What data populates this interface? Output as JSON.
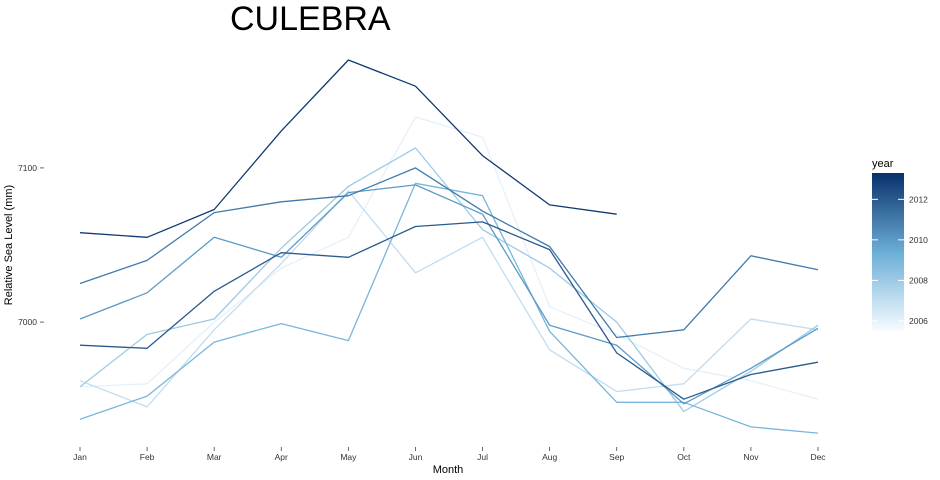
{
  "chart_data": {
    "type": "line",
    "title": "CULEBRA",
    "xlabel": "Month",
    "ylabel": "Relative Sea Level (mm)",
    "categories": [
      "Jan",
      "Feb",
      "Mar",
      "Apr",
      "May",
      "Jun",
      "Jul",
      "Aug",
      "Sep",
      "Oct",
      "Nov",
      "Dec"
    ],
    "ylim": [
      6920,
      7170
    ],
    "yticks": [
      7000,
      7100
    ],
    "grid": false,
    "legend": {
      "title": "year",
      "position": "right",
      "min": 2005.5,
      "max": 2013.3,
      "ticks": [
        2006,
        2008,
        2010,
        2012
      ],
      "low_color": "#f7fbff",
      "high_color": "#08306b"
    },
    "series": [
      {
        "year": 2006,
        "values": [
          6958,
          6960,
          7000,
          7035,
          7055,
          7133,
          7120,
          7010,
          6992,
          6970,
          6962,
          6950
        ]
      },
      {
        "year": 2007,
        "values": [
          6962,
          6945,
          6995,
          7038,
          7085,
          7032,
          7055,
          6982,
          6955,
          6960,
          7002,
          6995
        ]
      },
      {
        "year": 2008,
        "values": [
          6958,
          6992,
          7002,
          7048,
          7088,
          7113,
          7060,
          7035,
          7000,
          6942,
          6968,
          6998
        ]
      },
      {
        "year": 2009,
        "values": [
          6937,
          6952,
          6987,
          6999,
          6988,
          7090,
          7082,
          6994,
          6948,
          6948,
          6932,
          6928
        ]
      },
      {
        "year": 2010,
        "values": [
          7002,
          7019,
          7055,
          7042,
          7084,
          7089,
          7070,
          6998,
          6985,
          6947,
          6970,
          6996
        ]
      },
      {
        "year": 2011,
        "values": [
          7025,
          7040,
          7071,
          7078,
          7082,
          7100,
          7072,
          7049,
          6990,
          6995,
          7043,
          7034
        ]
      },
      {
        "year": 2012,
        "values": [
          6985,
          6983,
          7020,
          7045,
          7042,
          7062,
          7065,
          7047,
          6980,
          6950,
          6966,
          6974
        ]
      },
      {
        "year": 2013,
        "values": [
          7058,
          7055,
          7073,
          7124,
          7170,
          7153,
          7108,
          7076,
          7070,
          null,
          null,
          null
        ]
      }
    ]
  }
}
